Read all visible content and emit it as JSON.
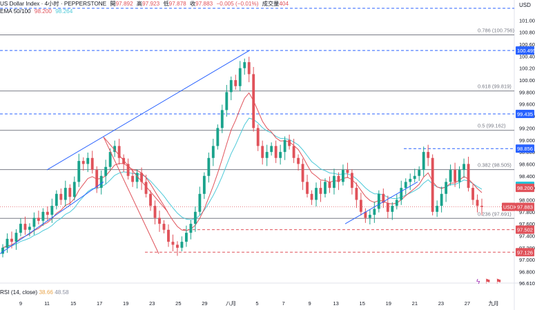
{
  "header": {
    "symbol": "US Dollar Index · 4小时 · PEPPERSTONE",
    "open_label": "開",
    "open": "97.892",
    "high_label": "高",
    "high": "97.923",
    "low_label": "低",
    "low": "97.878",
    "close_label": "收",
    "close": "97.883",
    "change": "−0.005 (−0.01%)",
    "volume_label": "成交量",
    "volume": "404",
    "ema_label": "EMA 50/100",
    "ema50": "98.200",
    "ema100": "98.264"
  },
  "rsi": {
    "label": "RSI (14, close)",
    "value1": "38.66",
    "value2": "48.58"
  },
  "axis": {
    "currency": "USD",
    "ticks": [
      "101.000",
      "100.800",
      "100.600",
      "100.400",
      "100.200",
      "100.000",
      "99.800",
      "99.600",
      "99.400",
      "99.200",
      "99.000",
      "98.800",
      "98.600",
      "98.400",
      "98.200",
      "98.000",
      "97.800",
      "97.600",
      "97.400",
      "97.200",
      "97.000",
      "96.800",
      "96.610"
    ],
    "badges": [
      {
        "text": "100.495",
        "value": 100.495,
        "color": "#2962ff"
      },
      {
        "text": "99.435",
        "value": 99.435,
        "color": "#2962ff"
      },
      {
        "text": "98.856",
        "value": 98.856,
        "color": "#2962ff"
      },
      {
        "text": "98.234",
        "value": 98.234,
        "color": "#22c1d6"
      },
      {
        "text": "98.200",
        "value": 98.2,
        "color": "#e0525a"
      },
      {
        "text": "USDX",
        "value": 97.883,
        "color": "#e0525a",
        "prefix": "USDX",
        "suffix": "97.883"
      },
      {
        "text": "97.502",
        "value": 97.502,
        "color": "#e0525a"
      },
      {
        "text": "97.126",
        "value": 97.126,
        "color": "#e0525a"
      }
    ]
  },
  "fib": [
    {
      "label": "0.786 (100.756)",
      "value": 100.756
    },
    {
      "label": "0.618 (99.819)",
      "value": 99.819
    },
    {
      "label": "0.5 (99.162)",
      "value": 99.162
    },
    {
      "label": "0.382 (98.505)",
      "value": 98.505
    },
    {
      "label": "0.236 (97.691)",
      "value": 97.691
    }
  ],
  "chart_data": {
    "type": "candlestick",
    "ylim": [
      96.61,
      101.2
    ],
    "x_tick_labels": [
      "9",
      "11",
      "15",
      "17",
      "19",
      "23",
      "25",
      "29",
      "八月",
      "5",
      "7",
      "9",
      "13",
      "15",
      "19",
      "21",
      "23",
      "27",
      "九月"
    ],
    "horizontal_levels_blue_dashed": [
      101.2,
      100.495,
      99.435,
      98.856
    ],
    "horizontal_levels_red_dashed": [
      97.502,
      97.126
    ],
    "last_price": 97.883,
    "ema50_last": 98.2,
    "ema100_last": 98.264,
    "closes": [
      97.2,
      97.35,
      97.3,
      97.45,
      97.6,
      97.5,
      97.55,
      97.7,
      97.65,
      97.8,
      97.75,
      97.9,
      98.1,
      98.0,
      98.2,
      98.05,
      98.3,
      98.65,
      98.6,
      98.7,
      98.5,
      98.2,
      98.4,
      98.55,
      98.8,
      98.9,
      98.7,
      98.6,
      98.4,
      98.3,
      98.45,
      98.3,
      98.1,
      97.9,
      97.7,
      97.6,
      97.5,
      97.3,
      97.25,
      97.2,
      97.3,
      97.45,
      97.6,
      97.8,
      98.1,
      98.4,
      98.7,
      98.9,
      99.2,
      99.5,
      99.8,
      100.0,
      99.9,
      100.2,
      100.3,
      100.1,
      99.2,
      98.9,
      98.7,
      98.8,
      98.9,
      98.7,
      98.8,
      99.0,
      98.9,
      98.7,
      98.6,
      98.3,
      98.1,
      98.0,
      98.2,
      98.1,
      98.3,
      98.2,
      98.4,
      98.3,
      98.5,
      98.45,
      98.2,
      98.0,
      97.8,
      97.7,
      97.75,
      97.85,
      98.1,
      97.95,
      97.8,
      97.9,
      98.0,
      98.2,
      98.3,
      98.35,
      98.4,
      98.5,
      98.8,
      98.7,
      97.8,
      97.9,
      98.1,
      98.3,
      98.5,
      98.3,
      98.5,
      98.6,
      98.2,
      98.0,
      97.9,
      97.883
    ]
  }
}
